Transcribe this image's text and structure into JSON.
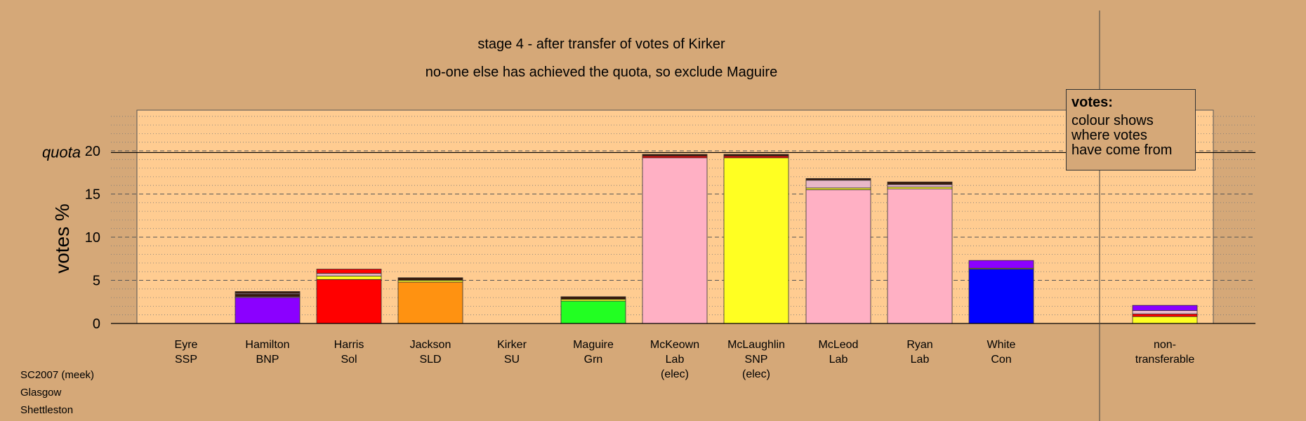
{
  "title": "stage 4 - after transfer of votes of Kirker",
  "subtitle": "no-one else has achieved the quota, so exclude Maguire",
  "footer": [
    "SC2007 (meek)",
    "Glasgow",
    "Shettleston"
  ],
  "legend": {
    "title": "votes:",
    "lines": [
      "colour shows",
      "where votes",
      "have come from"
    ]
  },
  "colors": {
    "background": "#d5a878",
    "plot_background": "#ffcc91",
    "SSP": "#e8b8c8",
    "BNP": "#8b00ff",
    "Sol": "#ff0000",
    "SLD": "#ff9211",
    "SU": "#3a1a0a",
    "Grn": "#22ff22",
    "Lab": "#ffb0c4",
    "SNP": "#ffff22",
    "Con": "#0000ff"
  },
  "chart_data": {
    "type": "bar",
    "stacked": true,
    "ylabel": "votes %",
    "quota_label": "quota",
    "quota": 19.8,
    "ylim": [
      0,
      24.6
    ],
    "yticks": [
      0,
      5,
      10,
      15,
      20
    ],
    "grid": "dashed major gridlines every 5, dotted minor gridlines every 1",
    "legend_placement": "top-right",
    "categories": [
      {
        "name": "Eyre",
        "party": "SSP",
        "note": ""
      },
      {
        "name": "Hamilton",
        "party": "BNP",
        "note": ""
      },
      {
        "name": "Harris",
        "party": "Sol",
        "note": ""
      },
      {
        "name": "Jackson",
        "party": "SLD",
        "note": ""
      },
      {
        "name": "Kirker",
        "party": "SU",
        "note": ""
      },
      {
        "name": "Maguire",
        "party": "Grn",
        "note": ""
      },
      {
        "name": "McKeown",
        "party": "Lab",
        "note": "(elec)"
      },
      {
        "name": "McLaughlin",
        "party": "SNP",
        "note": "(elec)"
      },
      {
        "name": "McLeod",
        "party": "Lab",
        "note": ""
      },
      {
        "name": "Ryan",
        "party": "Lab",
        "note": ""
      },
      {
        "name": "White",
        "party": "Con",
        "note": ""
      },
      {
        "name": "non-",
        "party": "transferable",
        "note": ""
      }
    ],
    "bars": [
      [],
      [
        {
          "from": "BNP",
          "value": 3.0
        },
        {
          "from": "SSP",
          "value": 0.1
        },
        {
          "from": "SU",
          "value": 0.3
        },
        {
          "from": "Lab",
          "value": 0.1
        },
        {
          "from": "SU",
          "value": 0.2
        }
      ],
      [
        {
          "from": "Sol",
          "value": 5.1
        },
        {
          "from": "SNP",
          "value": 0.4
        },
        {
          "from": "SSP",
          "value": 0.3
        },
        {
          "from": "Sol",
          "value": 0.5
        }
      ],
      [
        {
          "from": "SLD",
          "value": 4.8
        },
        {
          "from": "SNP",
          "value": 0.2
        },
        {
          "from": "SU",
          "value": 0.3
        }
      ],
      [],
      [
        {
          "from": "Grn",
          "value": 2.6
        },
        {
          "from": "SNP",
          "value": 0.2
        },
        {
          "from": "SU",
          "value": 0.3
        }
      ],
      [
        {
          "from": "Lab",
          "value": 19.2
        },
        {
          "from": "Sol",
          "value": 0.2
        },
        {
          "from": "SU",
          "value": 0.2
        }
      ],
      [
        {
          "from": "SNP",
          "value": 19.2
        },
        {
          "from": "Sol",
          "value": 0.2
        },
        {
          "from": "SU",
          "value": 0.2
        }
      ],
      [
        {
          "from": "Lab",
          "value": 15.5
        },
        {
          "from": "SNP",
          "value": 0.2
        },
        {
          "from": "SSP",
          "value": 0.9
        },
        {
          "from": "SU",
          "value": 0.2
        }
      ],
      [
        {
          "from": "Lab",
          "value": 15.6
        },
        {
          "from": "SNP",
          "value": 0.2
        },
        {
          "from": "SSP",
          "value": 0.3
        },
        {
          "from": "SU",
          "value": 0.3
        }
      ],
      [
        {
          "from": "Con",
          "value": 6.3
        },
        {
          "from": "SNP",
          "value": 0.1
        },
        {
          "from": "BNP",
          "value": 0.9
        }
      ],
      [
        {
          "from": "SNP",
          "value": 0.8
        },
        {
          "from": "Sol",
          "value": 0.3
        },
        {
          "from": "SSP",
          "value": 0.4
        },
        {
          "from": "BNP",
          "value": 0.6
        }
      ]
    ]
  }
}
